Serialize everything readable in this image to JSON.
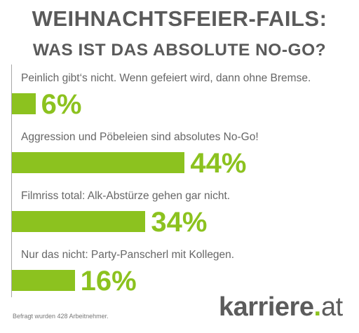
{
  "title": {
    "line1": "WEIHNACHTSFEIER-FAILS:",
    "line2": "WAS IST DAS ABSOLUTE NO-GO?"
  },
  "colors": {
    "bar": "#8cc21f",
    "title": "#5a5a5a",
    "label": "#666666"
  },
  "chart_data": {
    "type": "bar",
    "orientation": "horizontal",
    "categories": [
      "Peinlich gibt‘s nicht. Wenn gefeiert wird, dann ohne Bremse.",
      "Aggression und Pöbeleien sind absolutes No-Go!",
      "Filmriss total: Alk-Abstürze gehen gar nicht.",
      "Nur das nicht: Party-Panscherl mit Kollegen."
    ],
    "values": [
      6,
      44,
      34,
      16
    ],
    "value_labels": [
      "6%",
      "44%",
      "34%",
      "16%"
    ],
    "unit": "%",
    "xlim": [
      0,
      100
    ],
    "grid": false,
    "legend": "none"
  },
  "footnote": "Befragt wurden 428 Arbeitnehmer.",
  "logo": {
    "brand": "karriere",
    "dot": ".",
    "tld": "at"
  }
}
